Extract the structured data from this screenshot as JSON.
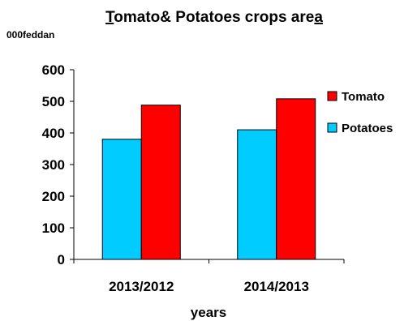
{
  "chart_data": {
    "type": "bar",
    "title_start": "T",
    "title_middle": "omato& Potatoes crops are",
    "title_end": "a",
    "unit_label": "000feddan",
    "xlabel": "years",
    "ylabel": "",
    "ylim": [
      0,
      600
    ],
    "yticks": [
      "0",
      "100",
      "200",
      "300",
      "400",
      "500",
      "600"
    ],
    "categories": [
      "2013/2012",
      "2014/2013"
    ],
    "series": [
      {
        "name": "Potatoes",
        "color": "#00ccff",
        "values": [
          380,
          410
        ]
      },
      {
        "name": "Tomato",
        "color": "#ff0000",
        "values": [
          488,
          508
        ]
      }
    ],
    "legend_order": [
      "Tomato",
      "Potatoes"
    ],
    "legend_position": "right",
    "grid": false
  }
}
